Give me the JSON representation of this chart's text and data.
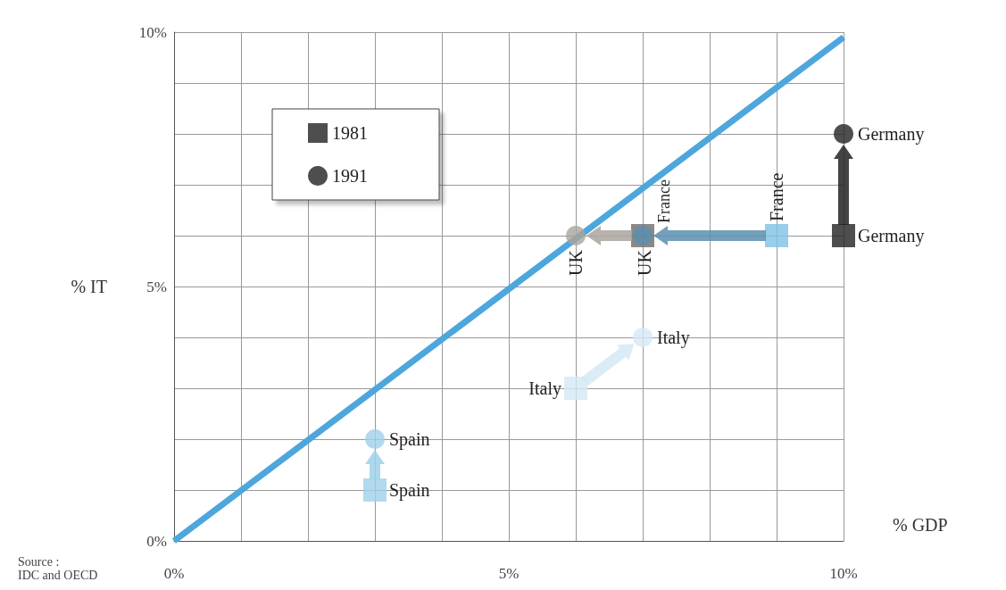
{
  "chart_data": {
    "type": "scatter",
    "xlabel": "% GDP",
    "ylabel": "% IT",
    "xlim": [
      0,
      10
    ],
    "ylim": [
      0,
      10
    ],
    "xticks": [
      {
        "value": 0,
        "label": "0%"
      },
      {
        "value": 1,
        "label": null
      },
      {
        "value": 2,
        "label": null
      },
      {
        "value": 3,
        "label": null
      },
      {
        "value": 4,
        "label": null
      },
      {
        "value": 5,
        "label": "5%"
      },
      {
        "value": 6,
        "label": null
      },
      {
        "value": 7,
        "label": null
      },
      {
        "value": 8,
        "label": null
      },
      {
        "value": 9,
        "label": null
      },
      {
        "value": 10,
        "label": "10%"
      }
    ],
    "yticks": [
      {
        "value": 0,
        "label": "0%"
      },
      {
        "value": 1,
        "label": null
      },
      {
        "value": 2,
        "label": null
      },
      {
        "value": 3,
        "label": null
      },
      {
        "value": 4,
        "label": null
      },
      {
        "value": 5,
        "label": "5%"
      },
      {
        "value": 6,
        "label": null
      },
      {
        "value": 7,
        "label": null
      },
      {
        "value": 8,
        "label": null
      },
      {
        "value": 9,
        "label": null
      },
      {
        "value": 10,
        "label": "10%"
      }
    ],
    "grid": true,
    "legend": "top left",
    "series": [
      {
        "type": "line",
        "x": [
          0,
          10
        ],
        "values": [
          0,
          9.9
        ],
        "color": "#4da6dc",
        "marker": "none"
      },
      {
        "name": "1981",
        "marker": "square",
        "color": "#222222",
        "x": [
          3,
          6,
          9,
          7,
          10
        ],
        "values": [
          1,
          3,
          6,
          6,
          6
        ],
        "colors": [
          "#9fd0ea",
          "#d3e9f5",
          "#7ec0e6",
          "#6e6c68",
          "#222222"
        ]
      },
      {
        "name": "1991",
        "marker": "circle",
        "color": "#222222",
        "x": [
          3,
          7,
          7,
          6,
          10
        ],
        "values": [
          2,
          4,
          6,
          6,
          8
        ],
        "colors": [
          "#9fd0ea",
          "#d3e9f5",
          "#5a8fb0",
          "#aaa59c",
          "#222222"
        ]
      }
    ],
    "annotations": [
      {
        "text": "Spain",
        "x": 3,
        "y": 1
      },
      {
        "text": "Spain",
        "x": 3,
        "y": 2
      },
      {
        "text": "Italy",
        "x": 6,
        "y": 3
      },
      {
        "text": "Italy",
        "x": 7,
        "y": 4
      },
      {
        "text": "France",
        "x": 9,
        "y": 6
      },
      {
        "text": "France",
        "x": 7,
        "y": 6
      },
      {
        "text": "UK",
        "x": 6,
        "y": 6
      },
      {
        "text": "UK",
        "x": 7,
        "y": 6
      },
      {
        "text": "Germany",
        "x": 10,
        "y": 6
      },
      {
        "text": "Germany",
        "x": 10,
        "y": 8
      },
      "Source :\nIDC and OECD"
    ]
  }
}
